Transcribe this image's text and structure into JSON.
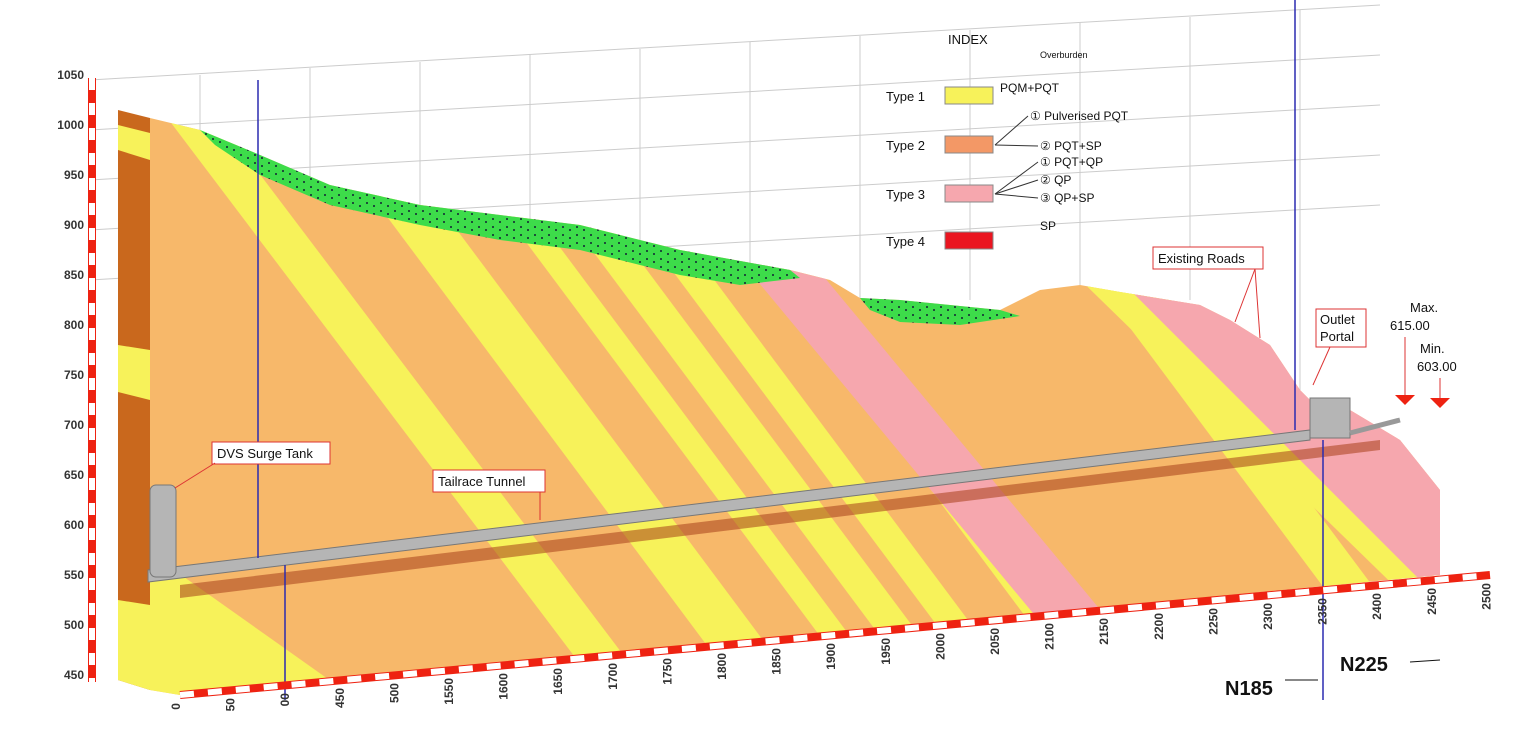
{
  "elevation_labels": [
    1050,
    1000,
    950,
    900,
    850,
    800,
    750,
    700,
    650,
    600,
    550,
    500,
    450
  ],
  "chainage_labels": [
    "0",
    "50",
    "00",
    "450",
    "500",
    "1550",
    "1600",
    "1650",
    "1700",
    "1750",
    "1800",
    "1850",
    "1900",
    "1950",
    "2000",
    "2050",
    "2100",
    "2150",
    "2200",
    "2250",
    "2300",
    "2350",
    "2400",
    "2450",
    "2500"
  ],
  "legend": {
    "title": "INDEX",
    "overburden": "Overburden",
    "items": [
      {
        "label": "Type 1",
        "color": "#f7f25a",
        "details": [
          "PQM+PQT"
        ]
      },
      {
        "label": "Type 2",
        "color": "#f39866",
        "details": [
          "① Pulverised PQT",
          "② PQT+SP"
        ]
      },
      {
        "label": "Type 3",
        "color": "#f6a7ae",
        "details": [
          "① PQT+QP",
          "② QP",
          "③ QP+SP"
        ]
      },
      {
        "label": "Type 4",
        "color": "#ea1520",
        "details": [
          "SP"
        ]
      }
    ]
  },
  "annotations": {
    "surge_tank": "DVS Surge Tank",
    "tunnel": "Tailrace Tunnel",
    "roads": "Existing Roads",
    "portal": [
      "Outlet",
      "Portal"
    ],
    "max_level": [
      "Max.",
      "615.00"
    ],
    "min_level": [
      "Min.",
      "603.00"
    ],
    "section_left": "N185",
    "section_right": "N225"
  }
}
